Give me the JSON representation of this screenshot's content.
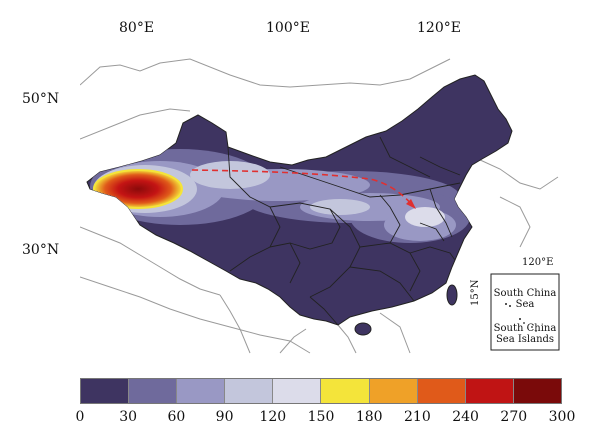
{
  "axes": {
    "lon_labels": [
      "80°E",
      "100°E",
      "120°E"
    ],
    "lat_labels": [
      "50°N",
      "30°N"
    ]
  },
  "inset": {
    "lon_label": "120°E",
    "lat_label": "15°N",
    "sea_label": "South China Sea",
    "islands_label": "South China Sea Islands"
  },
  "legend": {
    "ticks": [
      "0",
      "30",
      "60",
      "90",
      "120",
      "150",
      "180",
      "210",
      "240",
      "270",
      "300"
    ],
    "colors": [
      "#3e3461",
      "#6f6a9c",
      "#9998c4",
      "#c3c6dc",
      "#dcdcea",
      "#f4e43a",
      "#efa128",
      "#e05a1a",
      "#c01414",
      "#7a0a0a"
    ]
  },
  "colors": {
    "land": "#3e3461",
    "boundary": "#222222",
    "neighbor_lines": "#9a9a9a",
    "arrow": "#e03030"
  }
}
